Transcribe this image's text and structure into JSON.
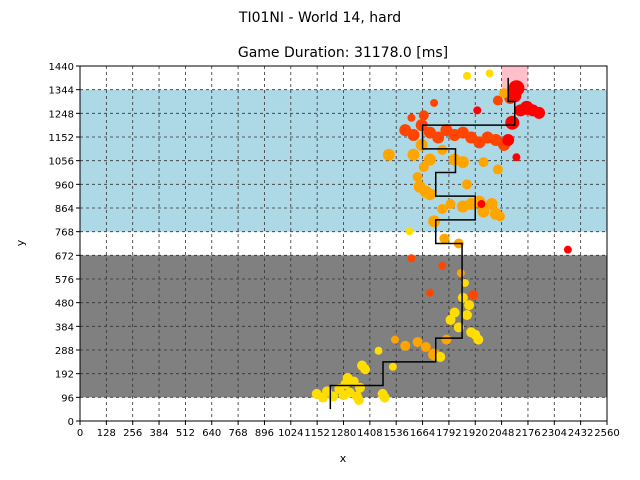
{
  "figure": {
    "suptitle": "TI01NI - World 14, hard",
    "title": "Game Duration: 31178.0 [ms]"
  },
  "chart_data": {
    "type": "scatter",
    "title": "Game Duration: 31178.0 [ms]",
    "xlabel": "x",
    "ylabel": "y",
    "xlim": [
      0,
      2560
    ],
    "ylim": [
      0,
      1440
    ],
    "xticks": [
      0,
      128,
      256,
      384,
      512,
      640,
      768,
      896,
      1024,
      1152,
      1280,
      1408,
      1536,
      1664,
      1792,
      1920,
      2048,
      2176,
      2304,
      2432,
      2560
    ],
    "yticks": [
      0,
      96,
      192,
      288,
      384,
      480,
      576,
      672,
      768,
      864,
      960,
      1056,
      1152,
      1248,
      1344,
      1440
    ],
    "grid": true,
    "grid_style": "dashed",
    "regions": [
      {
        "kind": "obstacle",
        "color": "#808080",
        "x": [
          0,
          2560
        ],
        "y": [
          96,
          672
        ]
      },
      {
        "kind": "water",
        "color": "#add8e6",
        "x": [
          0,
          2560
        ],
        "y": [
          768,
          1344
        ]
      },
      {
        "kind": "goal",
        "color": "#ffc0cb",
        "x": [
          2048,
          2176
        ],
        "y": [
          1344,
          1440
        ]
      }
    ],
    "colors": {
      "early": "#ffdd00",
      "mid": "#ffa500",
      "late": "#ff4500",
      "end": "#ff0000",
      "path": "#000000"
    },
    "path": [
      [
        1216,
        48
      ],
      [
        1216,
        144
      ],
      [
        1472,
        144
      ],
      [
        1472,
        240
      ],
      [
        1728,
        240
      ],
      [
        1728,
        336
      ],
      [
        1856,
        336
      ],
      [
        1856,
        720
      ],
      [
        1728,
        720
      ],
      [
        1728,
        816
      ],
      [
        1920,
        816
      ],
      [
        1920,
        912
      ],
      [
        1728,
        912
      ],
      [
        1728,
        1008
      ],
      [
        1824,
        1008
      ],
      [
        1824,
        1104
      ],
      [
        1664,
        1104
      ],
      [
        1664,
        1200
      ],
      [
        2112,
        1200
      ],
      [
        2112,
        1296
      ],
      [
        2080,
        1296
      ],
      [
        2080,
        1392
      ]
    ],
    "points": [
      {
        "x": 1150,
        "y": 110,
        "c": "early",
        "s": 5
      },
      {
        "x": 1180,
        "y": 95,
        "c": "early",
        "s": 5
      },
      {
        "x": 1200,
        "y": 120,
        "c": "early",
        "s": 5
      },
      {
        "x": 1230,
        "y": 100,
        "c": "early",
        "s": 5
      },
      {
        "x": 1260,
        "y": 130,
        "c": "early",
        "s": 5
      },
      {
        "x": 1290,
        "y": 150,
        "c": "early",
        "s": 5
      },
      {
        "x": 1310,
        "y": 115,
        "c": "early",
        "s": 5
      },
      {
        "x": 1330,
        "y": 160,
        "c": "early",
        "s": 5
      },
      {
        "x": 1345,
        "y": 100,
        "c": "early",
        "s": 5
      },
      {
        "x": 1360,
        "y": 135,
        "c": "early",
        "s": 5
      },
      {
        "x": 1300,
        "y": 175,
        "c": "early",
        "s": 5
      },
      {
        "x": 1280,
        "y": 105,
        "c": "early",
        "s": 5
      },
      {
        "x": 1370,
        "y": 225,
        "c": "early",
        "s": 5
      },
      {
        "x": 1385,
        "y": 210,
        "c": "early",
        "s": 5
      },
      {
        "x": 1355,
        "y": 85,
        "c": "early",
        "s": 5
      },
      {
        "x": 1450,
        "y": 285,
        "c": "early",
        "s": 4
      },
      {
        "x": 1470,
        "y": 110,
        "c": "early",
        "s": 5
      },
      {
        "x": 1480,
        "y": 95,
        "c": "early",
        "s": 5
      },
      {
        "x": 1520,
        "y": 220,
        "c": "early",
        "s": 4
      },
      {
        "x": 1530,
        "y": 330,
        "c": "mid",
        "s": 4
      },
      {
        "x": 1580,
        "y": 305,
        "c": "mid",
        "s": 5
      },
      {
        "x": 1640,
        "y": 320,
        "c": "mid",
        "s": 5
      },
      {
        "x": 1680,
        "y": 300,
        "c": "mid",
        "s": 5
      },
      {
        "x": 1720,
        "y": 270,
        "c": "mid",
        "s": 6
      },
      {
        "x": 1750,
        "y": 260,
        "c": "early",
        "s": 5
      },
      {
        "x": 1780,
        "y": 330,
        "c": "mid",
        "s": 5
      },
      {
        "x": 1800,
        "y": 410,
        "c": "early",
        "s": 5
      },
      {
        "x": 1820,
        "y": 440,
        "c": "early",
        "s": 5
      },
      {
        "x": 1840,
        "y": 380,
        "c": "early",
        "s": 5
      },
      {
        "x": 1860,
        "y": 500,
        "c": "early",
        "s": 5
      },
      {
        "x": 1880,
        "y": 430,
        "c": "early",
        "s": 5
      },
      {
        "x": 1890,
        "y": 470,
        "c": "early",
        "s": 5
      },
      {
        "x": 1900,
        "y": 360,
        "c": "early",
        "s": 5
      },
      {
        "x": 1910,
        "y": 510,
        "c": "late",
        "s": 5
      },
      {
        "x": 1920,
        "y": 350,
        "c": "early",
        "s": 5
      },
      {
        "x": 1935,
        "y": 330,
        "c": "early",
        "s": 5
      },
      {
        "x": 1870,
        "y": 560,
        "c": "early",
        "s": 4
      },
      {
        "x": 1850,
        "y": 600,
        "c": "mid",
        "s": 4
      },
      {
        "x": 1760,
        "y": 630,
        "c": "late",
        "s": 4
      },
      {
        "x": 1700,
        "y": 520,
        "c": "late",
        "s": 4
      },
      {
        "x": 1610,
        "y": 660,
        "c": "late",
        "s": 4
      },
      {
        "x": 1600,
        "y": 770,
        "c": "early",
        "s": 4
      },
      {
        "x": 1770,
        "y": 740,
        "c": "mid",
        "s": 5
      },
      {
        "x": 1840,
        "y": 720,
        "c": "mid",
        "s": 5
      },
      {
        "x": 1720,
        "y": 810,
        "c": "mid",
        "s": 6
      },
      {
        "x": 1760,
        "y": 860,
        "c": "mid",
        "s": 5
      },
      {
        "x": 1800,
        "y": 880,
        "c": "mid",
        "s": 5
      },
      {
        "x": 1860,
        "y": 870,
        "c": "mid",
        "s": 6
      },
      {
        "x": 1900,
        "y": 880,
        "c": "mid",
        "s": 6
      },
      {
        "x": 1940,
        "y": 890,
        "c": "mid",
        "s": 6
      },
      {
        "x": 1960,
        "y": 850,
        "c": "mid",
        "s": 6
      },
      {
        "x": 2000,
        "y": 880,
        "c": "mid",
        "s": 6
      },
      {
        "x": 2020,
        "y": 840,
        "c": "mid",
        "s": 6
      },
      {
        "x": 2040,
        "y": 830,
        "c": "mid",
        "s": 5
      },
      {
        "x": 1950,
        "y": 880,
        "c": "end",
        "s": 4
      },
      {
        "x": 1650,
        "y": 950,
        "c": "mid",
        "s": 6
      },
      {
        "x": 1680,
        "y": 930,
        "c": "mid",
        "s": 6
      },
      {
        "x": 1700,
        "y": 920,
        "c": "mid",
        "s": 6
      },
      {
        "x": 1640,
        "y": 990,
        "c": "mid",
        "s": 5
      },
      {
        "x": 1670,
        "y": 1030,
        "c": "mid",
        "s": 5
      },
      {
        "x": 1620,
        "y": 1080,
        "c": "mid",
        "s": 6
      },
      {
        "x": 1660,
        "y": 1120,
        "c": "mid",
        "s": 6
      },
      {
        "x": 1700,
        "y": 1060,
        "c": "mid",
        "s": 6
      },
      {
        "x": 1760,
        "y": 1100,
        "c": "mid",
        "s": 5
      },
      {
        "x": 1820,
        "y": 1060,
        "c": "mid",
        "s": 6
      },
      {
        "x": 1860,
        "y": 1050,
        "c": "mid",
        "s": 6
      },
      {
        "x": 1880,
        "y": 960,
        "c": "mid",
        "s": 5
      },
      {
        "x": 1500,
        "y": 1080,
        "c": "mid",
        "s": 6
      },
      {
        "x": 1580,
        "y": 1180,
        "c": "late",
        "s": 6
      },
      {
        "x": 1620,
        "y": 1160,
        "c": "late",
        "s": 6
      },
      {
        "x": 1660,
        "y": 1200,
        "c": "late",
        "s": 6
      },
      {
        "x": 1700,
        "y": 1170,
        "c": "late",
        "s": 6
      },
      {
        "x": 1740,
        "y": 1150,
        "c": "late",
        "s": 6
      },
      {
        "x": 1780,
        "y": 1180,
        "c": "late",
        "s": 6
      },
      {
        "x": 1820,
        "y": 1160,
        "c": "late",
        "s": 6
      },
      {
        "x": 1860,
        "y": 1170,
        "c": "late",
        "s": 6
      },
      {
        "x": 1900,
        "y": 1150,
        "c": "late",
        "s": 6
      },
      {
        "x": 1940,
        "y": 1130,
        "c": "late",
        "s": 6
      },
      {
        "x": 1980,
        "y": 1150,
        "c": "late",
        "s": 6
      },
      {
        "x": 2020,
        "y": 1140,
        "c": "late",
        "s": 6
      },
      {
        "x": 1720,
        "y": 1290,
        "c": "late",
        "s": 4
      },
      {
        "x": 1670,
        "y": 1240,
        "c": "late",
        "s": 5
      },
      {
        "x": 1610,
        "y": 1230,
        "c": "late",
        "s": 4
      },
      {
        "x": 1960,
        "y": 1050,
        "c": "mid",
        "s": 5
      },
      {
        "x": 2030,
        "y": 1020,
        "c": "mid",
        "s": 5
      },
      {
        "x": 2060,
        "y": 1120,
        "c": "late",
        "s": 6
      },
      {
        "x": 2080,
        "y": 1140,
        "c": "end",
        "s": 6
      },
      {
        "x": 2100,
        "y": 1210,
        "c": "end",
        "s": 7
      },
      {
        "x": 2120,
        "y": 1070,
        "c": "end",
        "s": 4
      },
      {
        "x": 2140,
        "y": 1260,
        "c": "end",
        "s": 6
      },
      {
        "x": 2170,
        "y": 1270,
        "c": "end",
        "s": 7
      },
      {
        "x": 2200,
        "y": 1260,
        "c": "end",
        "s": 6
      },
      {
        "x": 2230,
        "y": 1250,
        "c": "end",
        "s": 6
      },
      {
        "x": 2090,
        "y": 1310,
        "c": "late",
        "s": 6
      },
      {
        "x": 2120,
        "y": 1350,
        "c": "end",
        "s": 8
      },
      {
        "x": 2110,
        "y": 1320,
        "c": "end",
        "s": 7
      },
      {
        "x": 2030,
        "y": 1300,
        "c": "late",
        "s": 5
      },
      {
        "x": 2060,
        "y": 1330,
        "c": "mid",
        "s": 5
      },
      {
        "x": 1930,
        "y": 1260,
        "c": "end",
        "s": 4
      },
      {
        "x": 1990,
        "y": 1410,
        "c": "early",
        "s": 4
      },
      {
        "x": 1880,
        "y": 1400,
        "c": "early",
        "s": 4
      },
      {
        "x": 2370,
        "y": 695,
        "c": "end",
        "s": 4
      }
    ]
  }
}
